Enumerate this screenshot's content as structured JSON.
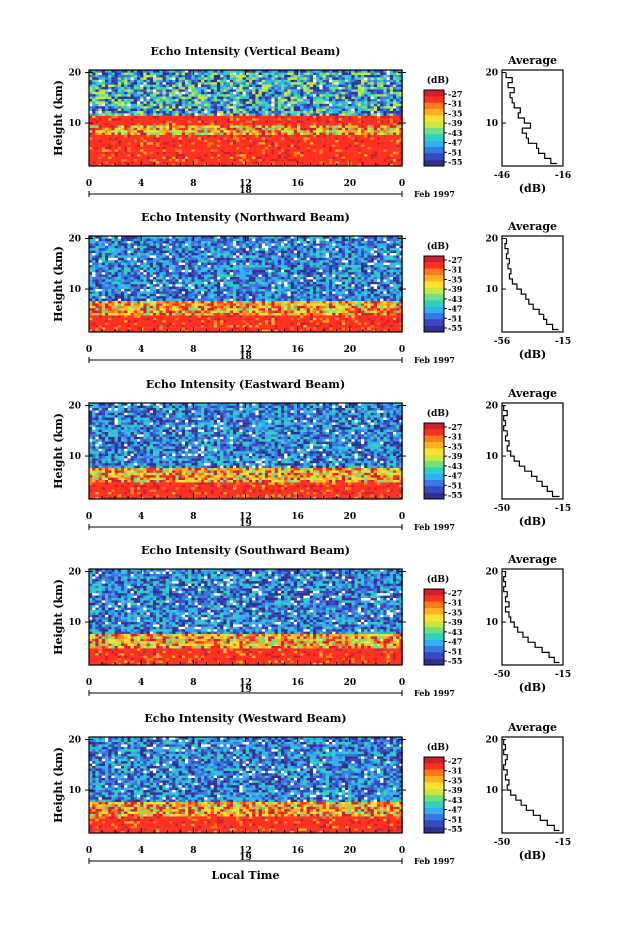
{
  "chart_data": [
    {
      "type": "heatmap",
      "title": "Echo Intensity (Vertical Beam)",
      "ylabel": "Height (km)",
      "x_ticks": [
        "0",
        "4",
        "8",
        "12",
        "16",
        "20",
        "0"
      ],
      "day_label": "18",
      "month_label": "Feb 1997",
      "xlim": [
        0,
        24
      ],
      "ylim": [
        1.5,
        20.5
      ],
      "y_ticks": [
        "20",
        "10"
      ],
      "colorbar": {
        "unit": "(dB)",
        "tick_labels": [
          "-27",
          "-31",
          "-35",
          "-39",
          "-43",
          "-47",
          "-51",
          "-55"
        ]
      },
      "layers": [
        {
          "height_range": [
            1.5,
            8
          ],
          "level": "high"
        },
        {
          "height_range": [
            8,
            10
          ],
          "level": "mixed"
        },
        {
          "height_range": [
            10,
            11.5
          ],
          "level": "high"
        },
        {
          "height_range": [
            11.5,
            20.5
          ],
          "level": "mixed-low"
        }
      ],
      "profile": {
        "title": "Average",
        "xlabel": "(dB)",
        "x_ticks": [
          "-46",
          "-16"
        ],
        "xlim": [
          -46,
          -16
        ],
        "y_ticks": [
          "20",
          "10"
        ],
        "ylim": [
          1.5,
          20.5
        ],
        "points": [
          [
            -19,
            2
          ],
          [
            -22,
            3
          ],
          [
            -25,
            4
          ],
          [
            -28,
            5
          ],
          [
            -29,
            6
          ],
          [
            -33,
            7
          ],
          [
            -34,
            8
          ],
          [
            -36,
            9
          ],
          [
            -32,
            10
          ],
          [
            -35,
            11
          ],
          [
            -38,
            12
          ],
          [
            -37,
            13
          ],
          [
            -40,
            14
          ],
          [
            -41,
            15
          ],
          [
            -42,
            16
          ],
          [
            -40,
            17
          ],
          [
            -43,
            18
          ],
          [
            -41,
            19
          ],
          [
            -44,
            20
          ]
        ]
      }
    },
    {
      "type": "heatmap",
      "title": "Echo Intensity (Northward Beam)",
      "ylabel": "Height (km)",
      "x_ticks": [
        "0",
        "4",
        "8",
        "12",
        "16",
        "20",
        "0"
      ],
      "day_label": "18",
      "month_label": "Feb 1997",
      "xlim": [
        0,
        24
      ],
      "ylim": [
        1.5,
        20.5
      ],
      "y_ticks": [
        "20",
        "10"
      ],
      "colorbar": {
        "unit": "(dB)",
        "tick_labels": [
          "-27",
          "-31",
          "-35",
          "-39",
          "-43",
          "-47",
          "-51",
          "-55"
        ]
      },
      "layers": [
        {
          "height_range": [
            1.5,
            5
          ],
          "level": "high"
        },
        {
          "height_range": [
            5,
            8
          ],
          "level": "mixed"
        },
        {
          "height_range": [
            8,
            20.5
          ],
          "level": "low"
        }
      ],
      "profile": {
        "title": "Average",
        "xlabel": "(dB)",
        "x_ticks": [
          "-56",
          "-15"
        ],
        "xlim": [
          -56,
          -15
        ],
        "y_ticks": [
          "20",
          "10"
        ],
        "ylim": [
          1.5,
          20.5
        ],
        "points": [
          [
            -18,
            2
          ],
          [
            -22,
            3
          ],
          [
            -26,
            4
          ],
          [
            -28,
            5
          ],
          [
            -31,
            6
          ],
          [
            -35,
            7
          ],
          [
            -38,
            8
          ],
          [
            -40,
            9
          ],
          [
            -43,
            10
          ],
          [
            -46,
            11
          ],
          [
            -49,
            12
          ],
          [
            -51,
            13
          ],
          [
            -50,
            14
          ],
          [
            -52,
            15
          ],
          [
            -51,
            16
          ],
          [
            -53,
            17
          ],
          [
            -52,
            18
          ],
          [
            -54,
            19
          ],
          [
            -53,
            20
          ]
        ]
      }
    },
    {
      "type": "heatmap",
      "title": "Echo Intensity (Eastward Beam)",
      "ylabel": "Height (km)",
      "x_ticks": [
        "0",
        "4",
        "8",
        "12",
        "16",
        "20",
        "0"
      ],
      "day_label": "19",
      "month_label": "Feb 1997",
      "xlim": [
        0,
        24
      ],
      "ylim": [
        1.5,
        20.5
      ],
      "y_ticks": [
        "20",
        "10"
      ],
      "colorbar": {
        "unit": "(dB)",
        "tick_labels": [
          "-27",
          "-31",
          "-35",
          "-39",
          "-43",
          "-47",
          "-51",
          "-55"
        ]
      },
      "layers": [
        {
          "height_range": [
            1.5,
            5
          ],
          "level": "high"
        },
        {
          "height_range": [
            5,
            8
          ],
          "level": "mixed"
        },
        {
          "height_range": [
            8,
            20.5
          ],
          "level": "low"
        }
      ],
      "profile": {
        "title": "Average",
        "xlabel": "(dB)",
        "x_ticks": [
          "-50",
          "-15"
        ],
        "xlim": [
          -50,
          -15
        ],
        "y_ticks": [
          "20",
          "10"
        ],
        "ylim": [
          1.5,
          20.5
        ],
        "points": [
          [
            -17,
            2
          ],
          [
            -21,
            3
          ],
          [
            -24,
            4
          ],
          [
            -27,
            5
          ],
          [
            -30,
            6
          ],
          [
            -33,
            7
          ],
          [
            -37,
            8
          ],
          [
            -40,
            9
          ],
          [
            -43,
            10
          ],
          [
            -45,
            11
          ],
          [
            -47,
            12
          ],
          [
            -46,
            13
          ],
          [
            -48,
            14
          ],
          [
            -47,
            15
          ],
          [
            -49,
            16
          ],
          [
            -48,
            17
          ],
          [
            -49,
            18
          ],
          [
            -47,
            19
          ],
          [
            -49,
            20
          ]
        ]
      }
    },
    {
      "type": "heatmap",
      "title": "Echo Intensity (Southward Beam)",
      "ylabel": "Height (km)",
      "x_ticks": [
        "0",
        "4",
        "8",
        "12",
        "16",
        "20",
        "0"
      ],
      "day_label": "19",
      "month_label": "Feb 1997",
      "xlim": [
        0,
        24
      ],
      "ylim": [
        1.5,
        20.5
      ],
      "y_ticks": [
        "20",
        "10"
      ],
      "colorbar": {
        "unit": "(dB)",
        "tick_labels": [
          "-27",
          "-31",
          "-35",
          "-39",
          "-43",
          "-47",
          "-51",
          "-55"
        ]
      },
      "layers": [
        {
          "height_range": [
            1.5,
            5
          ],
          "level": "high"
        },
        {
          "height_range": [
            5,
            8
          ],
          "level": "mixed"
        },
        {
          "height_range": [
            8,
            20.5
          ],
          "level": "low"
        }
      ],
      "profile": {
        "title": "Average",
        "xlabel": "(dB)",
        "x_ticks": [
          "-50",
          "-15"
        ],
        "xlim": [
          -50,
          -15
        ],
        "y_ticks": [
          "20",
          "10"
        ],
        "ylim": [
          1.5,
          20.5
        ],
        "points": [
          [
            -17,
            2
          ],
          [
            -20,
            3
          ],
          [
            -23,
            4
          ],
          [
            -27,
            5
          ],
          [
            -31,
            6
          ],
          [
            -35,
            7
          ],
          [
            -38,
            8
          ],
          [
            -41,
            9
          ],
          [
            -43,
            10
          ],
          [
            -45,
            11
          ],
          [
            -46,
            12
          ],
          [
            -48,
            13
          ],
          [
            -46,
            14
          ],
          [
            -48,
            15
          ],
          [
            -47,
            16
          ],
          [
            -49,
            17
          ],
          [
            -48,
            18
          ],
          [
            -49,
            19
          ],
          [
            -48,
            20
          ]
        ]
      }
    },
    {
      "type": "heatmap",
      "title": "Echo Intensity (Westward Beam)",
      "ylabel": "Height (km)",
      "x_ticks": [
        "0",
        "4",
        "8",
        "12",
        "16",
        "20",
        "0"
      ],
      "day_label": "19",
      "month_label": "Feb 1997",
      "xlim": [
        0,
        24
      ],
      "ylim": [
        1.5,
        20.5
      ],
      "y_ticks": [
        "20",
        "10"
      ],
      "colorbar": {
        "unit": "(dB)",
        "tick_labels": [
          "-27",
          "-31",
          "-35",
          "-39",
          "-43",
          "-47",
          "-51",
          "-55"
        ]
      },
      "layers": [
        {
          "height_range": [
            1.5,
            5
          ],
          "level": "high"
        },
        {
          "height_range": [
            5,
            8
          ],
          "level": "mixed"
        },
        {
          "height_range": [
            8,
            20.5
          ],
          "level": "low"
        }
      ],
      "profile": {
        "title": "Average",
        "xlabel": "(dB)",
        "x_ticks": [
          "-50",
          "-15"
        ],
        "xlim": [
          -50,
          -15
        ],
        "y_ticks": [
          "20",
          "10"
        ],
        "ylim": [
          1.5,
          20.5
        ],
        "points": [
          [
            -17,
            2
          ],
          [
            -20,
            3
          ],
          [
            -24,
            4
          ],
          [
            -28,
            5
          ],
          [
            -32,
            6
          ],
          [
            -36,
            7
          ],
          [
            -39,
            8
          ],
          [
            -42,
            9
          ],
          [
            -45,
            10
          ],
          [
            -47,
            11
          ],
          [
            -46,
            12
          ],
          [
            -48,
            13
          ],
          [
            -47,
            14
          ],
          [
            -49,
            15
          ],
          [
            -48,
            16
          ],
          [
            -47,
            17
          ],
          [
            -49,
            18
          ],
          [
            -48,
            19
          ],
          [
            -49,
            20
          ]
        ]
      }
    }
  ],
  "figure": {
    "xlabel": "Local Time"
  },
  "colors": {
    "scale": [
      "#d02030",
      "#ff3020",
      "#ff7a1a",
      "#ffb020",
      "#ffe030",
      "#c8e840",
      "#70e080",
      "#30d0c0",
      "#30b0f0",
      "#3878e0",
      "#3848c0",
      "#303090"
    ],
    "missing": "#ffffff"
  }
}
